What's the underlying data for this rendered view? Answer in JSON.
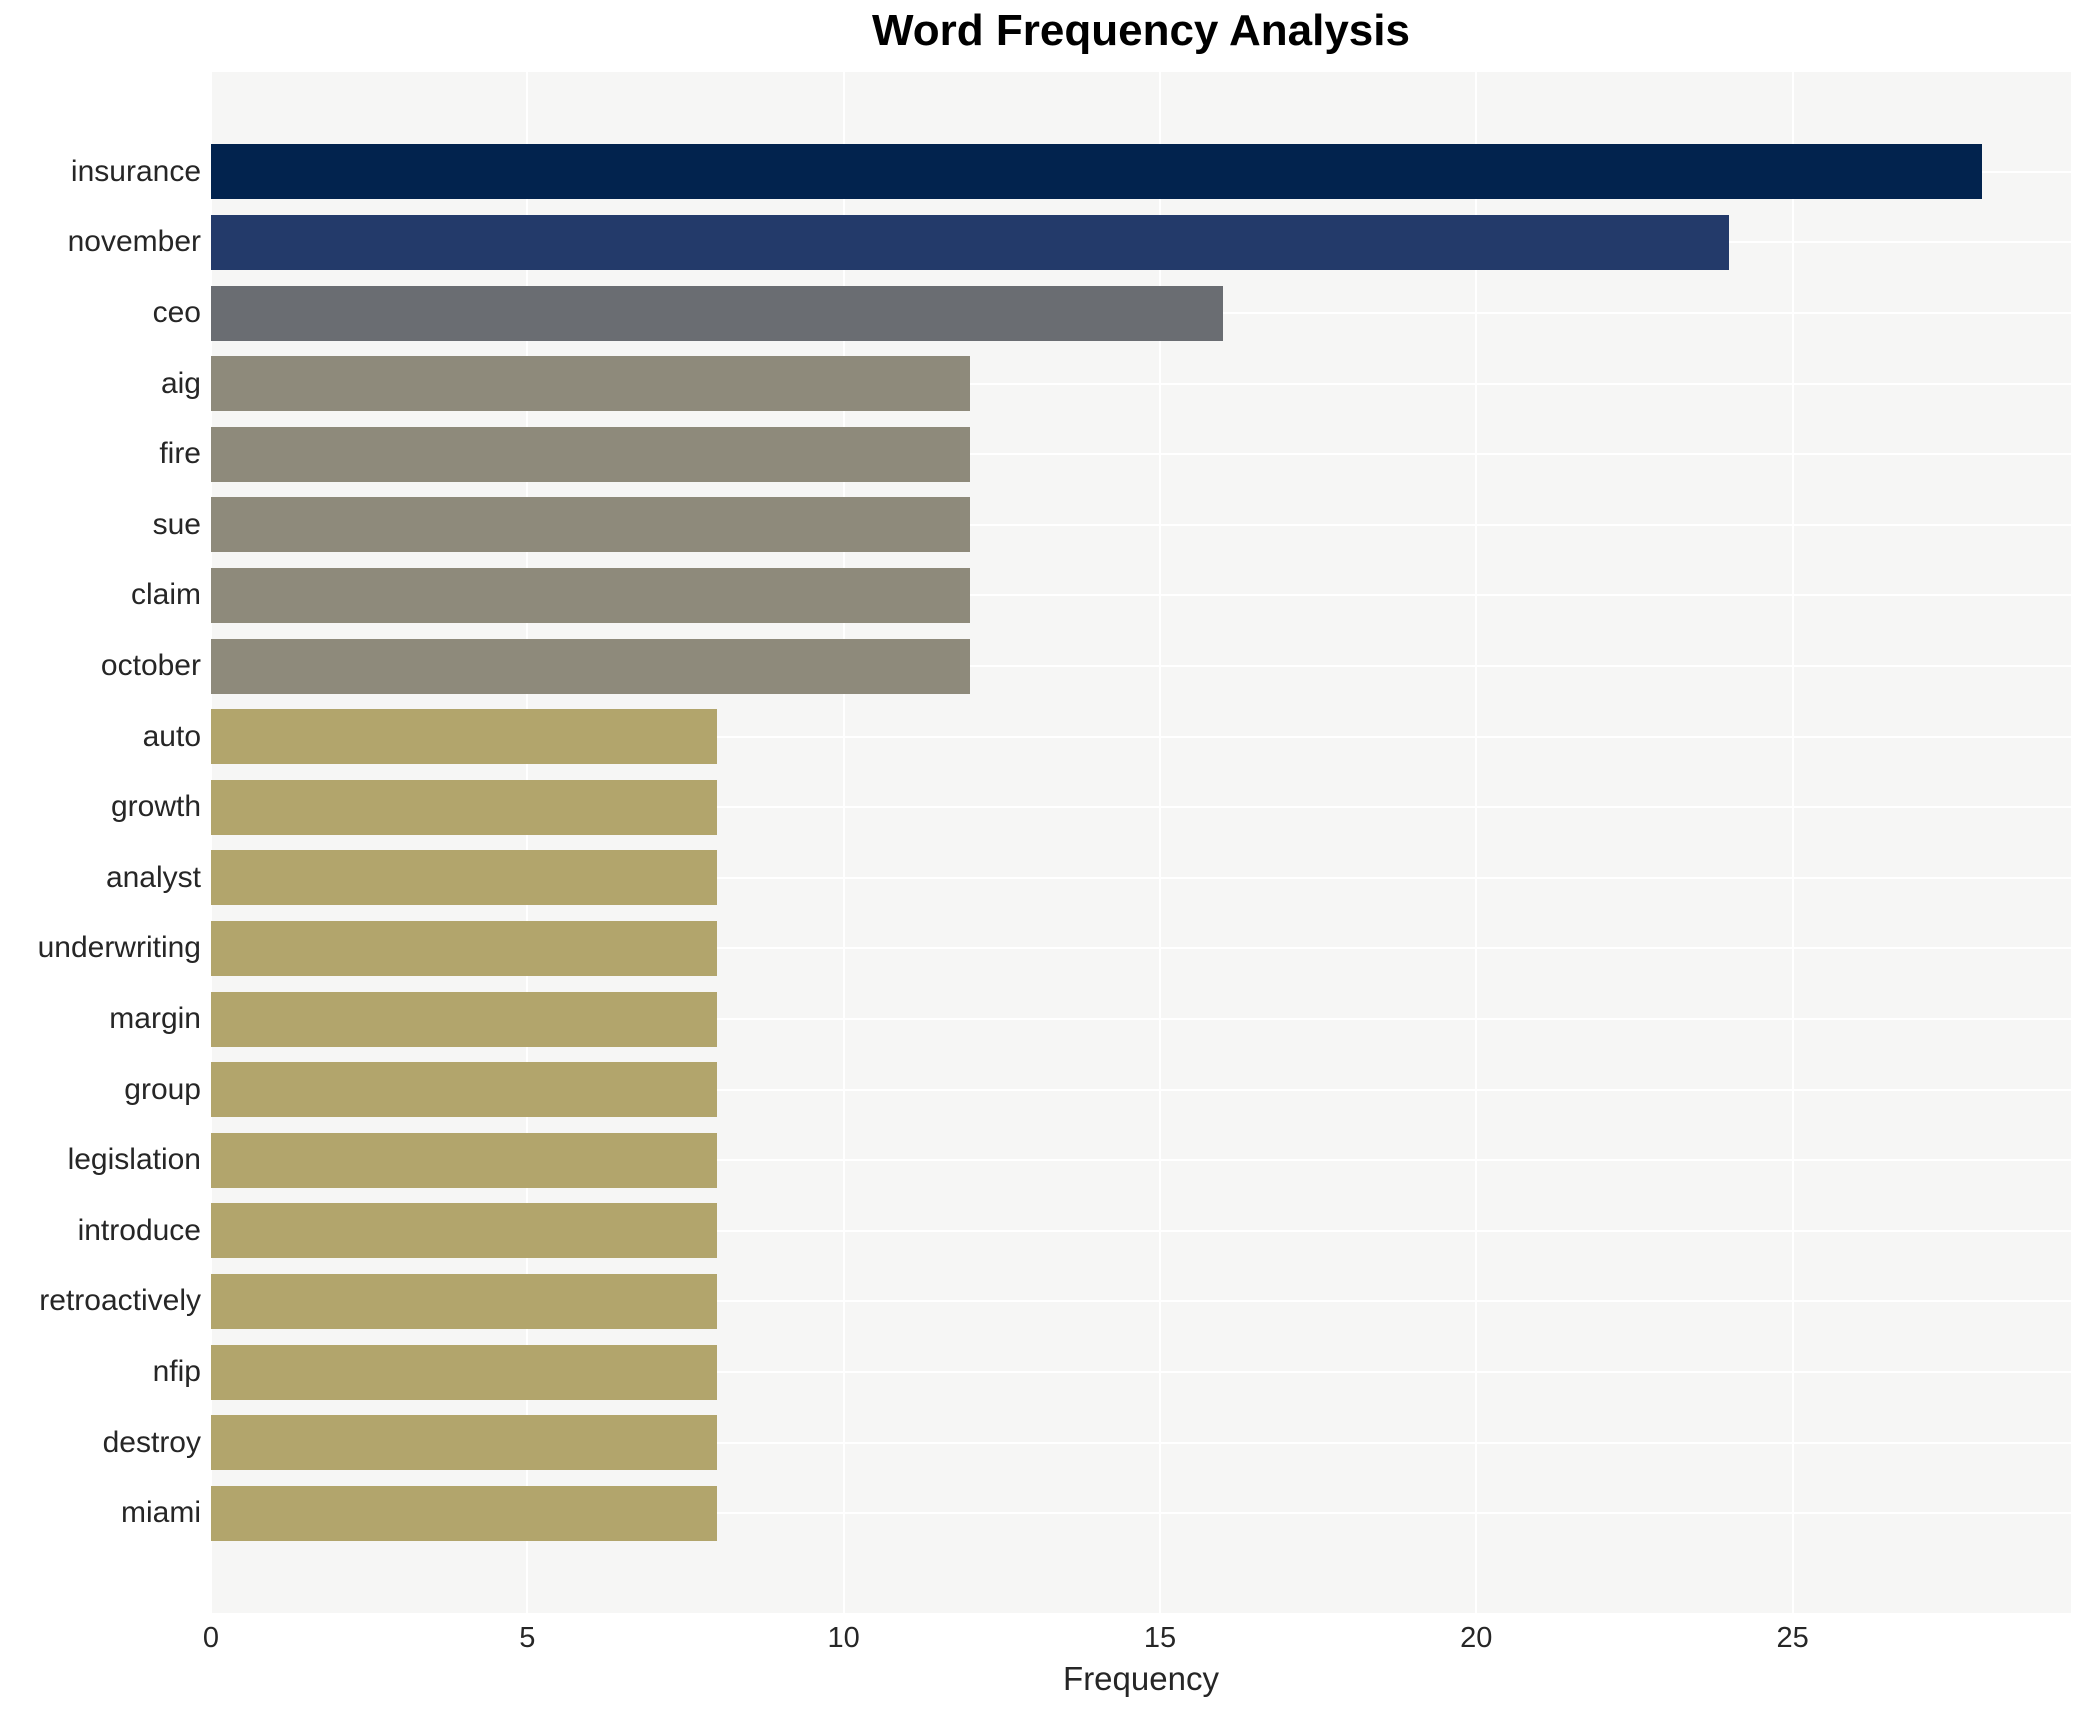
{
  "chart_data": {
    "type": "bar",
    "orientation": "horizontal",
    "title": "Word Frequency Analysis",
    "xlabel": "Frequency",
    "ylabel": "",
    "categories": [
      "insurance",
      "november",
      "ceo",
      "aig",
      "fire",
      "sue",
      "claim",
      "october",
      "auto",
      "growth",
      "analyst",
      "underwriting",
      "margin",
      "group",
      "legislation",
      "introduce",
      "retroactively",
      "nfip",
      "destroy",
      "miami"
    ],
    "values": [
      28,
      24,
      16,
      12,
      12,
      12,
      12,
      12,
      8,
      8,
      8,
      8,
      8,
      8,
      8,
      8,
      8,
      8,
      8,
      8
    ],
    "bar_colors": [
      "#02234e",
      "#233a6a",
      "#6a6d72",
      "#8e8a7b",
      "#8e8a7b",
      "#8e8a7b",
      "#8e8a7b",
      "#8e8a7b",
      "#b2a56c",
      "#b2a56c",
      "#b2a56c",
      "#b2a56c",
      "#b2a56c",
      "#b2a56c",
      "#b2a56c",
      "#b2a56c",
      "#b2a56c",
      "#b2a56c",
      "#b2a56c",
      "#b2a56c"
    ],
    "xticks": [
      0,
      5,
      10,
      15,
      20,
      25
    ],
    "xlim": [
      0,
      29.4
    ],
    "grid": true,
    "legend": false,
    "plot_background": "#f6f6f5",
    "gridline_color": "#ffffff",
    "text_color": "#262626"
  }
}
